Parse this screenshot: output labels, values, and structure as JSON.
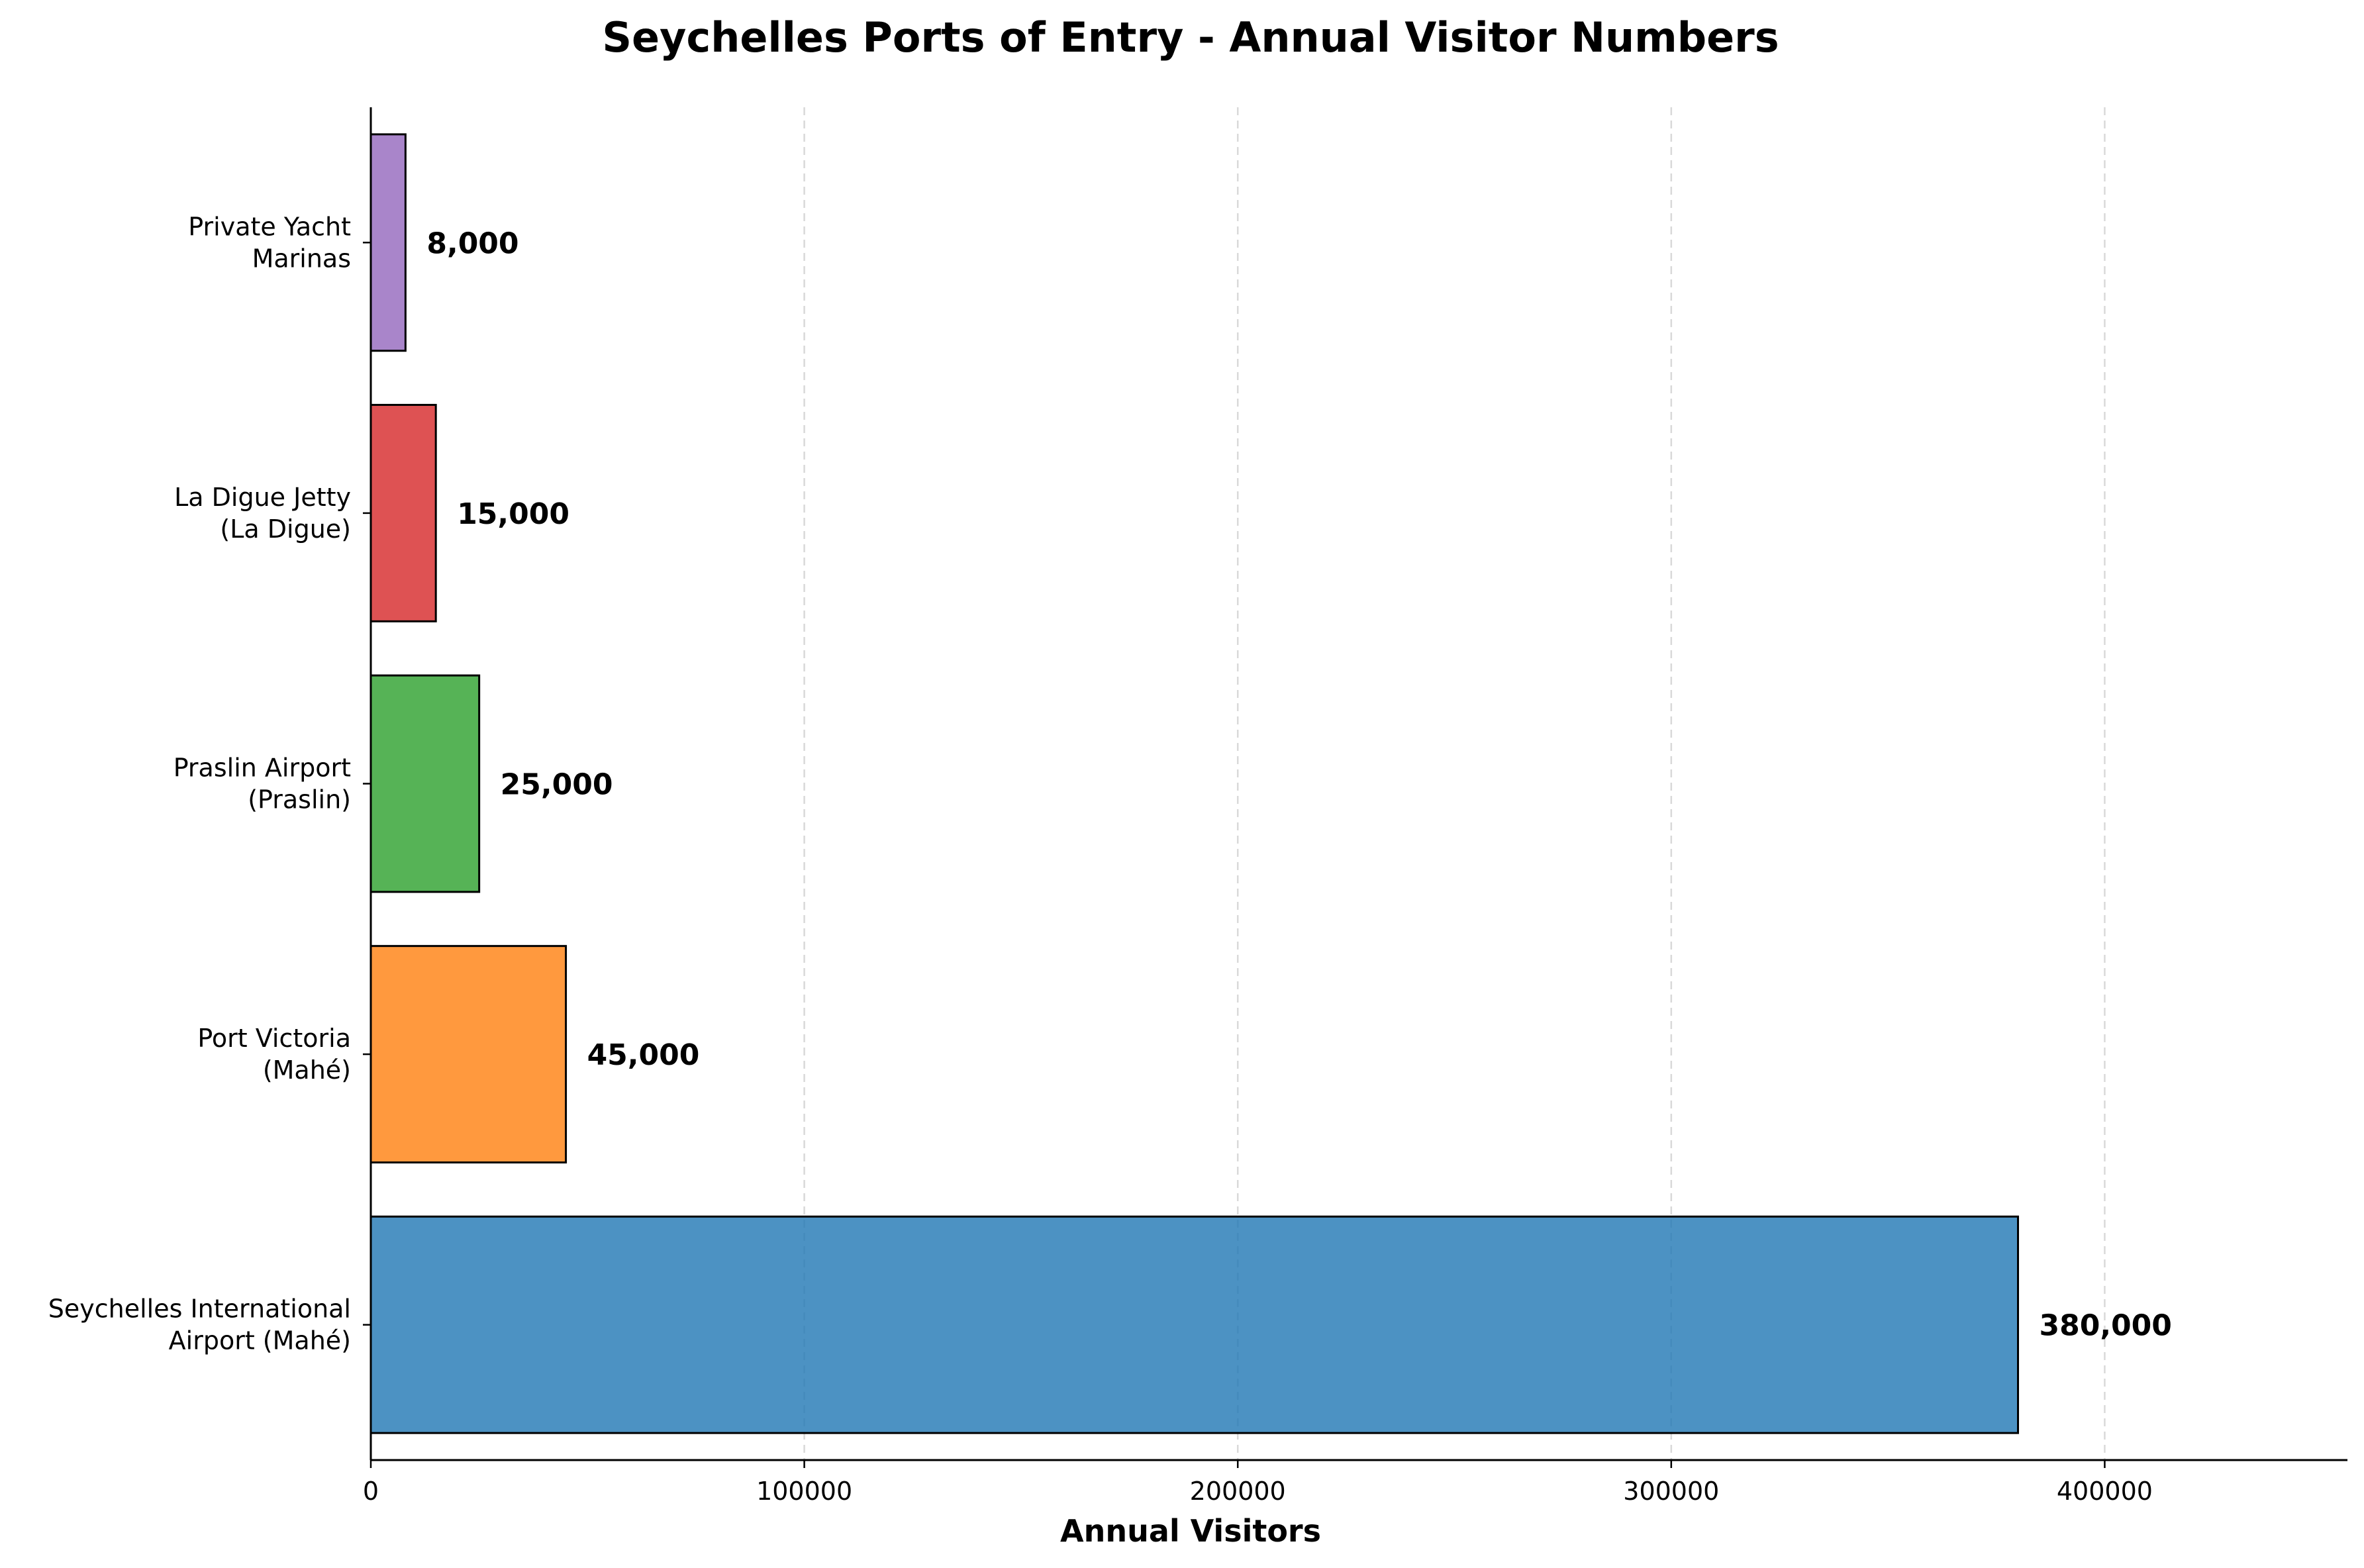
{
  "chart_data": {
    "type": "bar",
    "orientation": "horizontal",
    "title": "Seychelles Ports of Entry - Annual Visitor Numbers",
    "xlabel": "Annual Visitors",
    "ylabel": "",
    "categories": [
      [
        "Seychelles International",
        "Airport (Mahé)"
      ],
      [
        "Port Victoria",
        "(Mahé)"
      ],
      [
        "Praslin Airport",
        "(Praslin)"
      ],
      [
        "La Digue Jetty",
        "(La Digue)"
      ],
      [
        "Private Yacht",
        "Marinas"
      ]
    ],
    "values": [
      380000,
      45000,
      25000,
      15000,
      8000
    ],
    "value_labels": [
      "380,000",
      "45,000",
      "25,000",
      "15,000",
      "8,000"
    ],
    "colors": [
      "#1f77b4",
      "#ff7f0e",
      "#2ca02c",
      "#d62728",
      "#9467bd"
    ],
    "xlim": [
      0,
      456000
    ],
    "xticks": [
      0,
      100000,
      200000,
      300000,
      400000
    ],
    "xtick_labels": [
      "0",
      "100000",
      "200000",
      "300000",
      "400000"
    ],
    "grid": "x-dashed"
  }
}
